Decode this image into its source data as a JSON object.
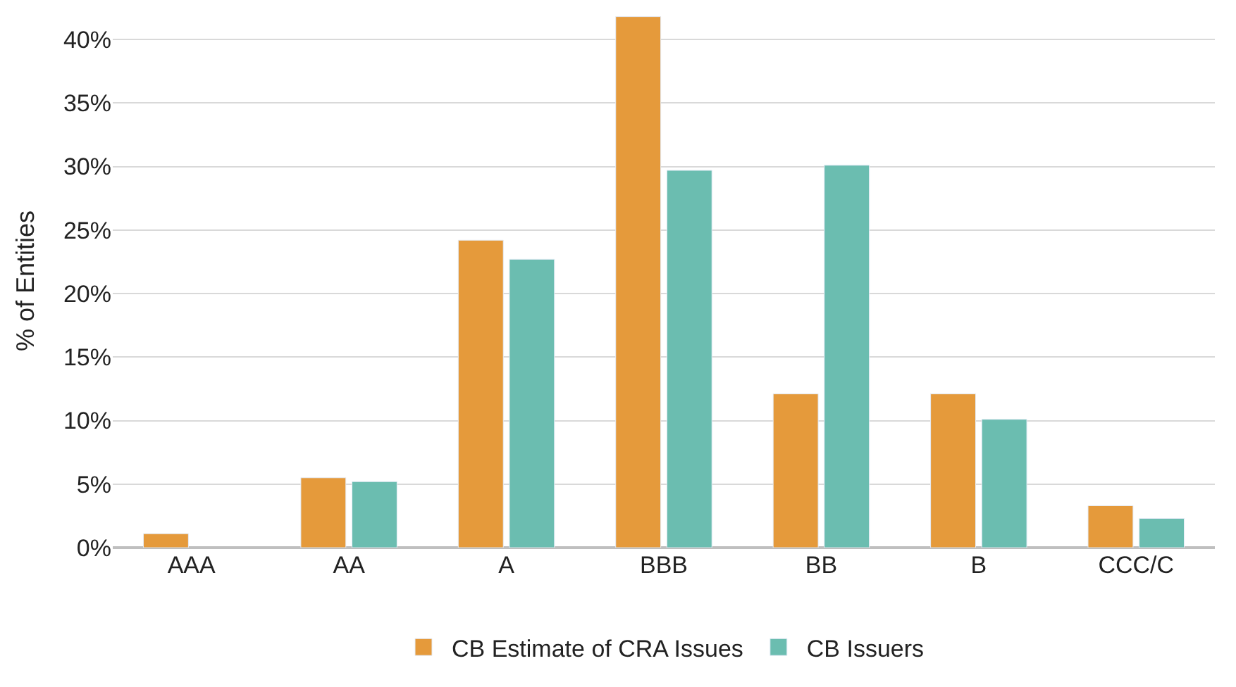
{
  "chart_data": {
    "type": "bar",
    "ylabel": "% of Entities",
    "categories": [
      "AAA",
      "AA",
      "A",
      "BBB",
      "BB",
      "B",
      "CCC/C"
    ],
    "series": [
      {
        "name": "CB Estimate of CRA Issues",
        "color": "#e59a3b",
        "values": [
          1.1,
          5.5,
          24.2,
          41.8,
          12.1,
          12.1,
          3.3
        ]
      },
      {
        "name": "CB Issuers",
        "color": "#6bbdb0",
        "values": [
          null,
          5.2,
          22.7,
          29.7,
          30.1,
          10.1,
          2.3
        ]
      }
    ],
    "ylim": [
      0,
      42
    ],
    "yticks": [
      {
        "value": 0,
        "label": "0%"
      },
      {
        "value": 5,
        "label": "5%"
      },
      {
        "value": 10,
        "label": "10%"
      },
      {
        "value": 15,
        "label": "15%"
      },
      {
        "value": 20,
        "label": "20%"
      },
      {
        "value": 25,
        "label": "25%"
      },
      {
        "value": 30,
        "label": "30%"
      },
      {
        "value": 35,
        "label": "35%"
      },
      {
        "value": 40,
        "label": "40%"
      }
    ],
    "grid": "y",
    "legend": "bottom"
  }
}
